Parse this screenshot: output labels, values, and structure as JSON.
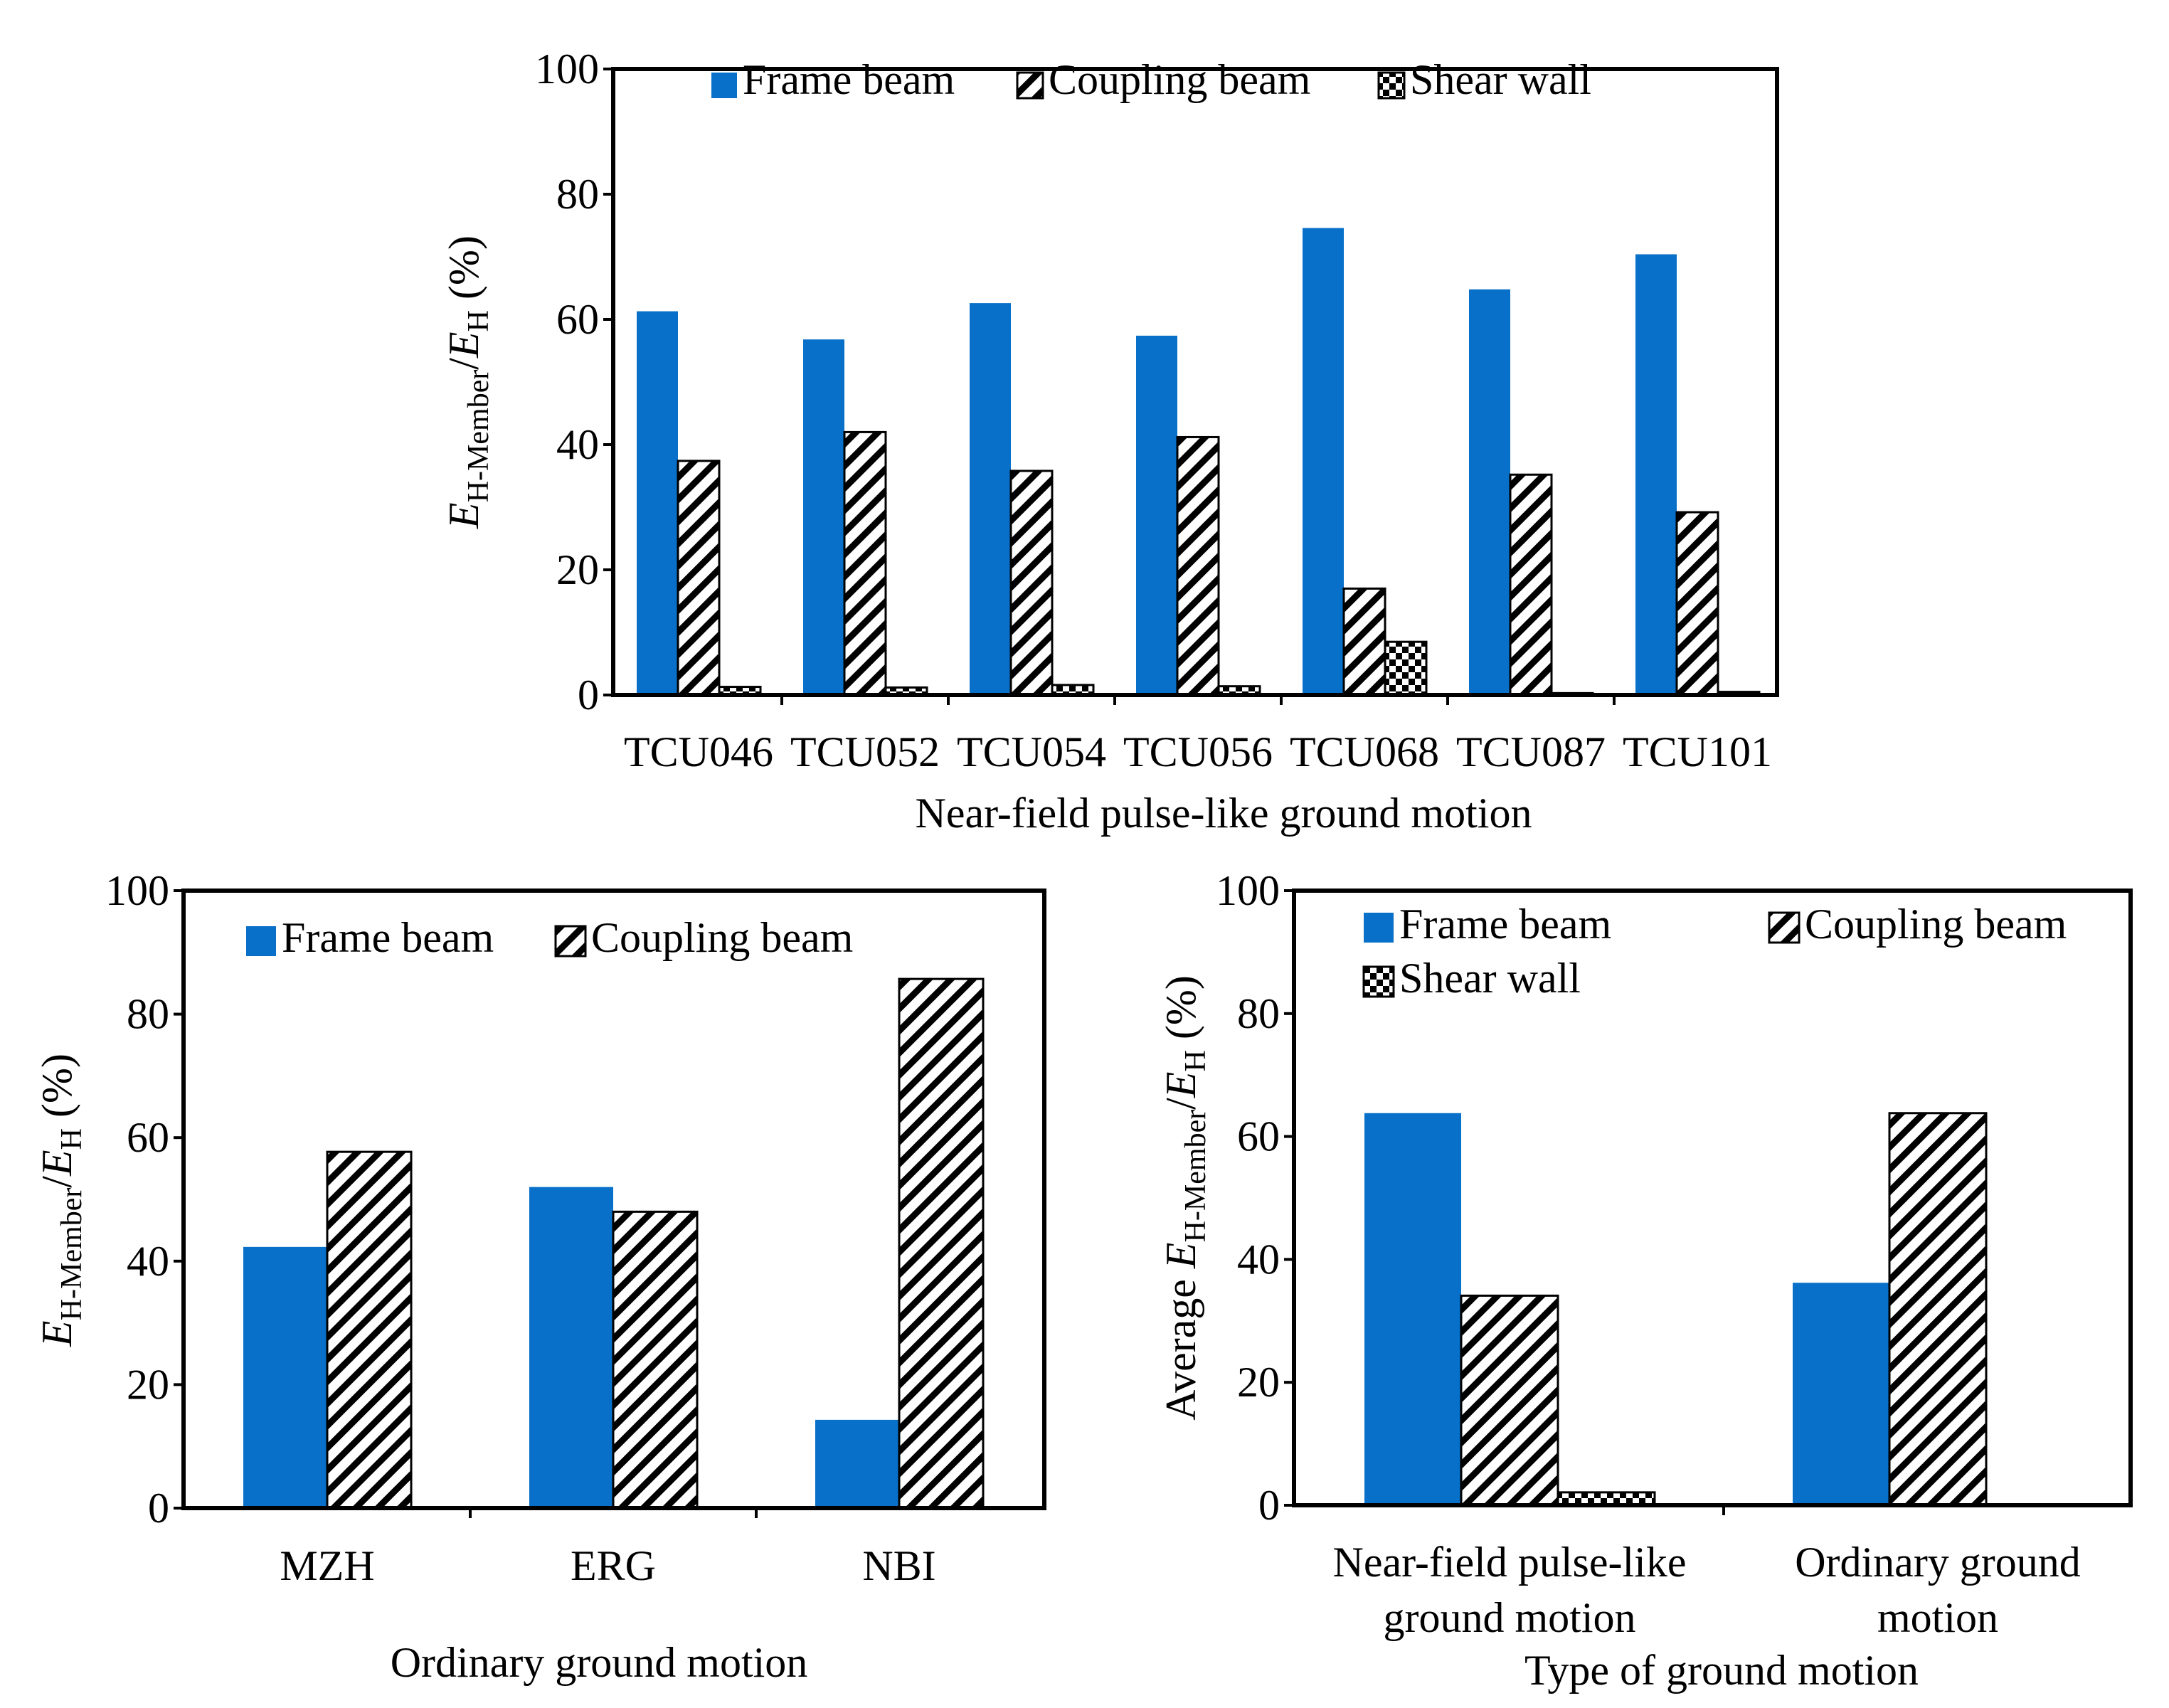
{
  "colors": {
    "frame": "#0870C8",
    "axis": "#000000",
    "background": "#FFFFFF"
  },
  "chart_data": [
    {
      "id": "top",
      "type": "bar",
      "categories": [
        "TCU046",
        "TCU052",
        "TCU054",
        "TCU056",
        "TCU068",
        "TCU087",
        "TCU101"
      ],
      "series": [
        {
          "name": "Frame beam",
          "pattern": "solid",
          "values": [
            61.3,
            56.8,
            62.6,
            57.4,
            74.6,
            64.8,
            70.4
          ]
        },
        {
          "name": "Coupling beam",
          "pattern": "diagonal",
          "values": [
            37.4,
            42.0,
            35.8,
            41.2,
            17.0,
            35.2,
            29.2
          ]
        },
        {
          "name": "Shear wall",
          "pattern": "checker",
          "values": [
            1.3,
            1.2,
            1.6,
            1.4,
            8.5,
            0.3,
            0.5
          ]
        }
      ],
      "xlabel": "Near-field pulse-like ground motion",
      "ylabel": {
        "prefix": "",
        "main": "E",
        "sub": "H-Member",
        "slash": "/",
        "main2": "E",
        "sub2": "H",
        "suffix": " (%)"
      },
      "ylim": [
        0,
        100
      ],
      "yticks": [
        "0",
        "20",
        "40",
        "60",
        "80",
        "100"
      ],
      "legend": "top"
    },
    {
      "id": "bottom-left",
      "type": "bar",
      "categories": [
        "MZH",
        "ERG",
        "NBI"
      ],
      "series": [
        {
          "name": "Frame beam",
          "pattern": "solid",
          "values": [
            42.3,
            52.0,
            14.3
          ]
        },
        {
          "name": "Coupling beam",
          "pattern": "diagonal",
          "values": [
            57.7,
            48.0,
            85.7
          ]
        }
      ],
      "xlabel": "Ordinary ground motion",
      "ylabel": {
        "prefix": "",
        "main": "E",
        "sub": "H-Member",
        "slash": "/",
        "main2": "E",
        "sub2": "H",
        "suffix": " (%)"
      },
      "ylim": [
        0,
        100
      ],
      "yticks": [
        "0",
        "20",
        "40",
        "60",
        "80",
        "100"
      ],
      "legend": "top"
    },
    {
      "id": "bottom-right",
      "type": "bar",
      "categories": [
        "Near-field pulse-like|ground motion",
        "Ordinary ground|motion"
      ],
      "series": [
        {
          "name": "Frame beam",
          "pattern": "solid",
          "values": [
            63.8,
            36.2
          ]
        },
        {
          "name": "Coupling beam",
          "pattern": "diagonal",
          "values": [
            34.1,
            63.8
          ]
        },
        {
          "name": "Shear wall",
          "pattern": "checker",
          "values": [
            2.1,
            0.0
          ]
        }
      ],
      "xlabel": "Type of ground motion",
      "ylabel": {
        "prefix": "Average ",
        "main": "E",
        "sub": "H-Member",
        "slash": "/",
        "main2": "E",
        "sub2": "H",
        "suffix": " (%)"
      },
      "ylim": [
        0,
        100
      ],
      "yticks": [
        "0",
        "20",
        "40",
        "60",
        "80",
        "100"
      ],
      "legend": "top-left"
    }
  ]
}
